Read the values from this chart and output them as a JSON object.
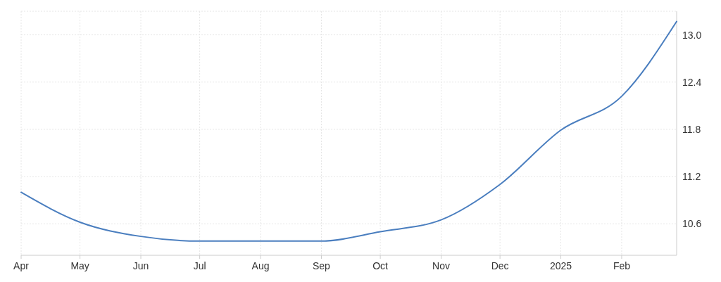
{
  "chart_data": {
    "type": "line",
    "x": [
      "2024-04-01",
      "2024-05-01",
      "2024-06-01",
      "2024-07-01",
      "2024-08-01",
      "2024-09-01",
      "2024-10-01",
      "2024-11-01",
      "2024-12-01",
      "2025-01-01",
      "2025-02-01",
      "2025-03-01"
    ],
    "series": [
      {
        "color": "#4a7ebf",
        "values": [
          11.0,
          10.62,
          10.44,
          10.38,
          10.38,
          10.38,
          10.5,
          10.65,
          11.1,
          11.79,
          12.22,
          13.17
        ]
      }
    ],
    "xlim": [
      "2024-04-01",
      "2025-03-01"
    ],
    "xticks": [
      {
        "value": "2024-04-01",
        "label": "Apr"
      },
      {
        "value": "2024-05-01",
        "label": "May"
      },
      {
        "value": "2024-06-01",
        "label": "Jun"
      },
      {
        "value": "2024-07-01",
        "label": "Jul"
      },
      {
        "value": "2024-08-01",
        "label": "Aug"
      },
      {
        "value": "2024-09-01",
        "label": "Sep"
      },
      {
        "value": "2024-10-01",
        "label": "Oct"
      },
      {
        "value": "2024-11-01",
        "label": "Nov"
      },
      {
        "value": "2024-12-01",
        "label": "Dec"
      },
      {
        "value": "2025-01-01",
        "label": "2025"
      },
      {
        "value": "2025-02-01",
        "label": "Feb"
      }
    ],
    "ylim": [
      10.2,
      13.3
    ],
    "yticks": [
      {
        "value": 10.6,
        "label": "10.6"
      },
      {
        "value": 11.2,
        "label": "11.2"
      },
      {
        "value": 11.8,
        "label": "11.8"
      },
      {
        "value": 12.4,
        "label": "12.4"
      },
      {
        "value": 13.0,
        "label": "13.0"
      }
    ],
    "grid": true,
    "marker": "none",
    "line_style": "solid"
  }
}
